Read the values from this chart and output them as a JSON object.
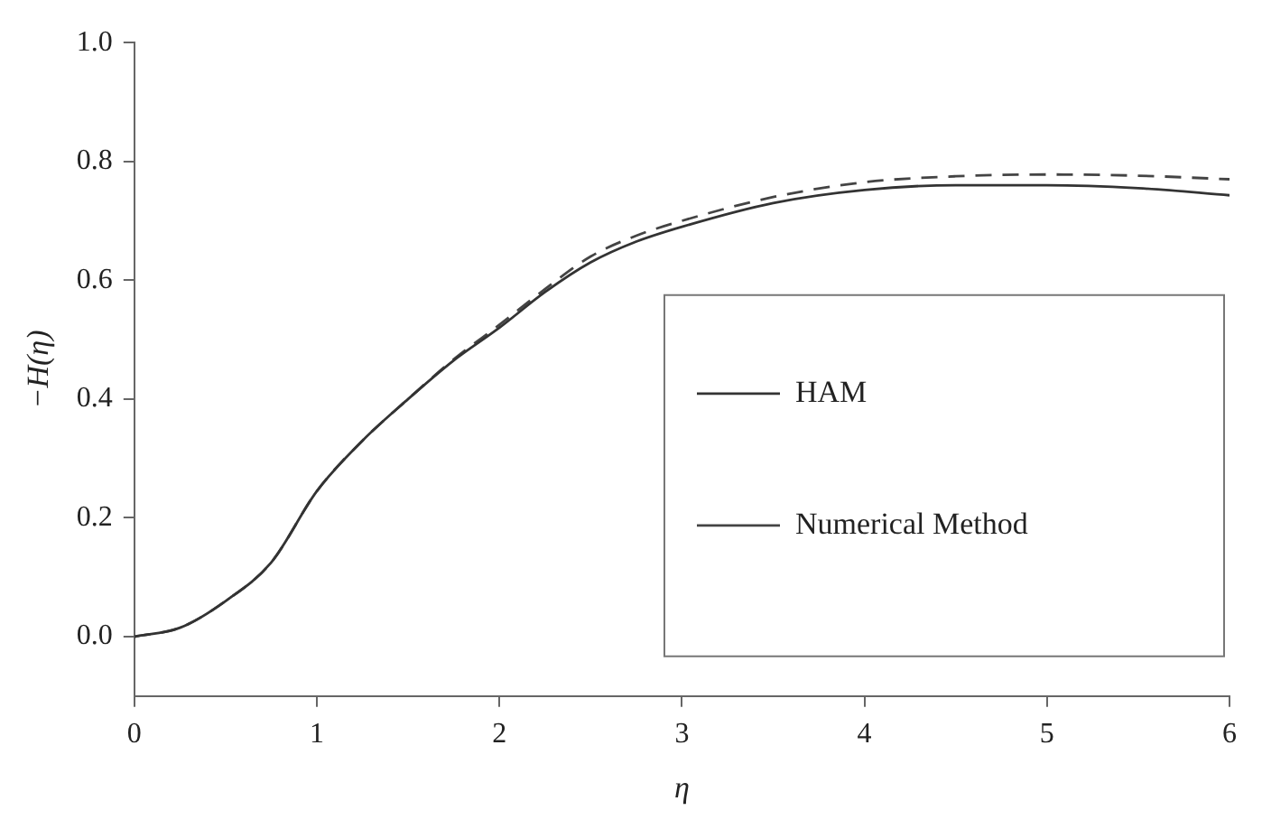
{
  "chart_data": {
    "type": "line",
    "xlabel": "η",
    "ylabel": "−H(η)",
    "xlim": [
      0,
      6
    ],
    "ylim": [
      -0.1,
      1.0
    ],
    "xticks": [
      0,
      1,
      2,
      3,
      4,
      5,
      6
    ],
    "yticks": [
      {
        "value": 0,
        "label": "0.0"
      },
      {
        "value": 0.2,
        "label": "0.2"
      },
      {
        "value": 0.4,
        "label": "0.4"
      },
      {
        "value": 0.6,
        "label": "0.6"
      },
      {
        "value": 0.8,
        "label": "0.8"
      },
      {
        "value": 1,
        "label": "1.0"
      }
    ],
    "grid": false,
    "legend": "bottom right",
    "marker": "none",
    "x": [
      0,
      0.25,
      0.5,
      0.75,
      1,
      1.25,
      1.5,
      1.75,
      2,
      2.25,
      2.5,
      2.75,
      3,
      3.5,
      4,
      4.5,
      5,
      5.5,
      6
    ],
    "series": [
      {
        "name": "HAM",
        "color": "#333333",
        "line_style": "solid",
        "values": [
          0,
          0.015,
          0.06,
          0.125,
          0.245,
          0.33,
          0.4,
          0.465,
          0.52,
          0.58,
          0.63,
          0.665,
          0.69,
          0.73,
          0.752,
          0.76,
          0.76,
          0.755,
          0.743
        ]
      },
      {
        "name": "Numerical Method",
        "color": "#444444",
        "line_style": "dashed",
        "values": [
          0,
          0.015,
          0.06,
          0.125,
          0.245,
          0.33,
          0.4,
          0.467,
          0.525,
          0.585,
          0.64,
          0.675,
          0.7,
          0.74,
          0.765,
          0.775,
          0.778,
          0.776,
          0.77
        ]
      }
    ]
  }
}
